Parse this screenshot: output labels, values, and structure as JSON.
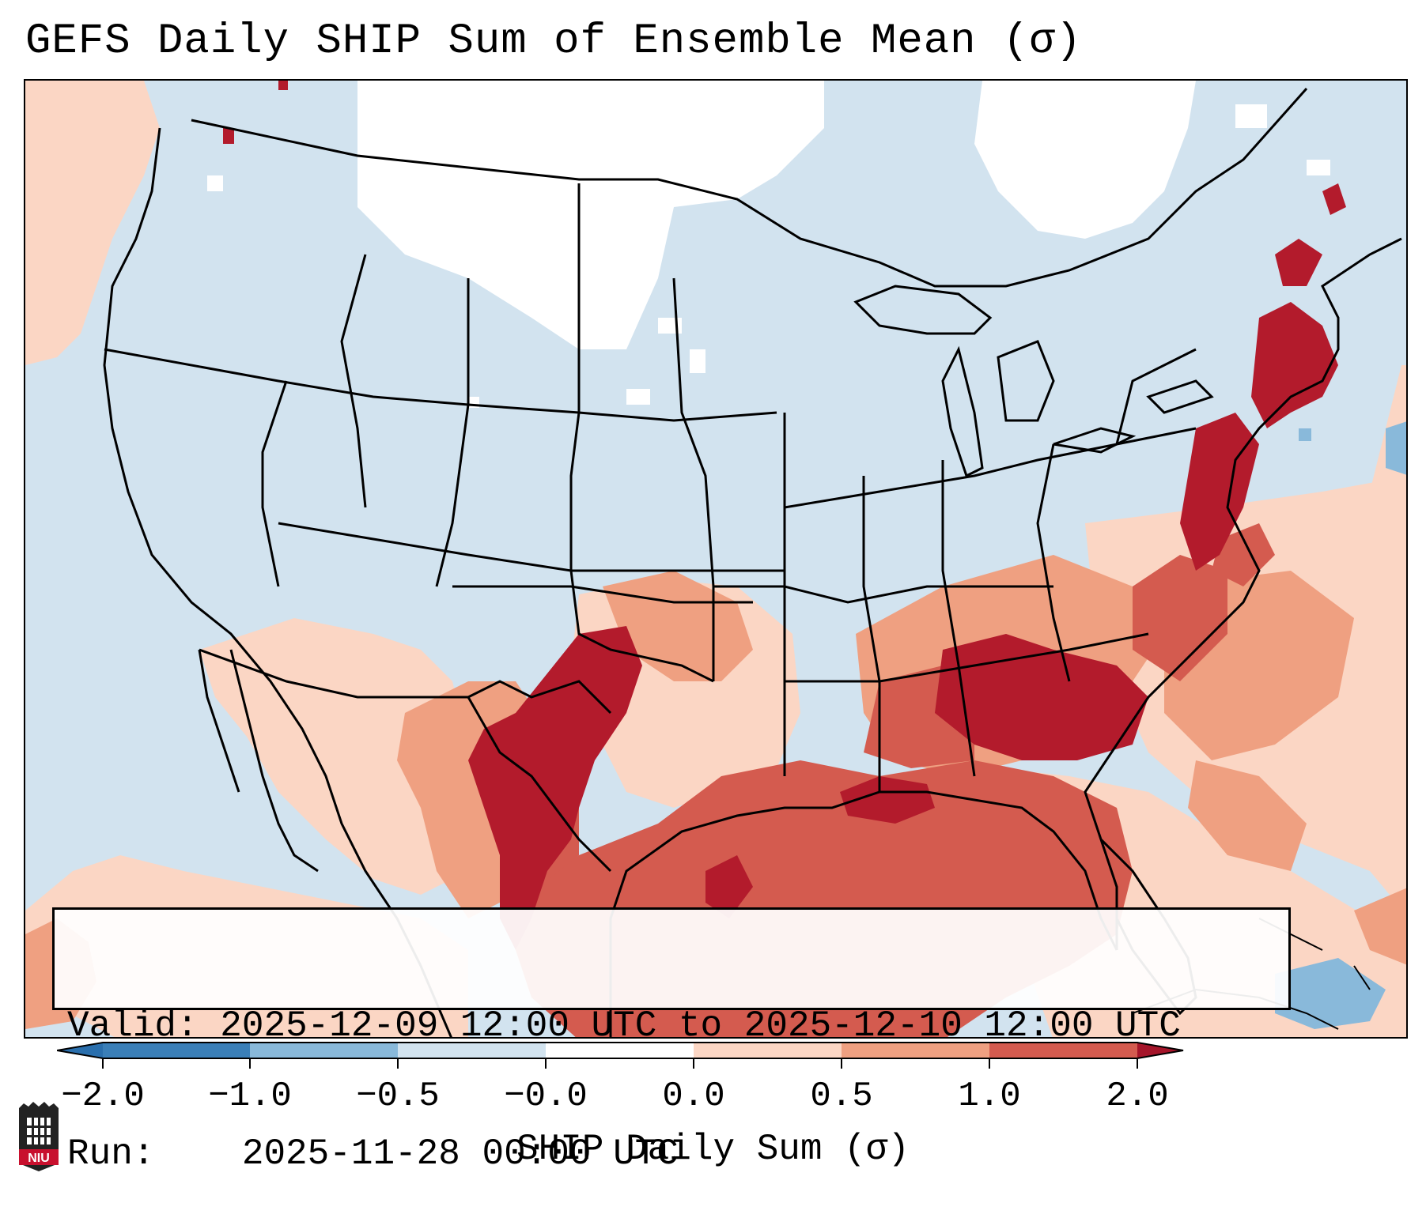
{
  "title": "GEFS Daily SHIP Sum of Ensemble Mean (σ)",
  "info": {
    "valid_label": "Valid:",
    "valid_value": "2025-12-09 12:00 UTC to 2025-12-10 12:00 UTC",
    "run_label": "Run:",
    "run_value": "2025-11-28 00:00 UTC"
  },
  "colorbar": {
    "label": "SHIP Daily Sum (σ)",
    "ticks": [
      "−2.0",
      "−1.0",
      "−0.5",
      "−0.0",
      "0.0",
      "0.5",
      "1.0",
      "2.0"
    ],
    "colors": [
      "#3a7fb8",
      "#89b9da",
      "#d2e3ef",
      "#ffffff",
      "#fbd6c4",
      "#efa081",
      "#d45b4f",
      "#b31b2c"
    ],
    "extend_left_color": "#2a6fad",
    "extend_right_color": "#a5152a"
  },
  "map_colors": {
    "ocean": "#d2e3ef",
    "white_zone": "#ffffff",
    "light_pink": "#fbd6c4",
    "salmon": "#efa081",
    "red": "#d45b4f",
    "dark_red": "#b31b2c",
    "blue": "#89b9da"
  },
  "logo": {
    "text": "NIU",
    "colors": {
      "shield": "#222222",
      "band": "#c8102e"
    }
  }
}
